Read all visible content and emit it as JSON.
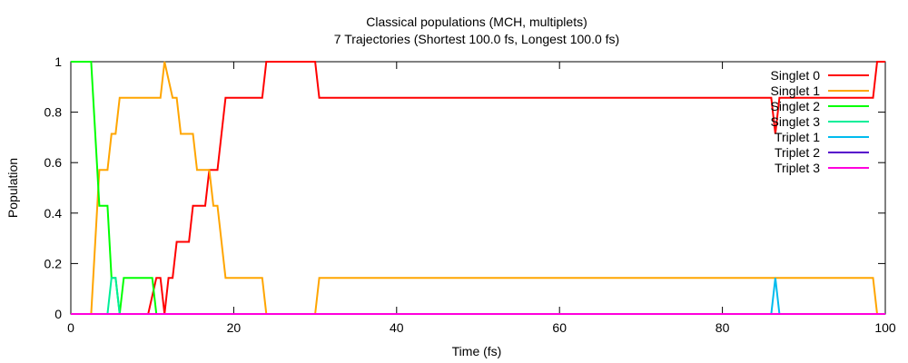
{
  "chart_data": {
    "type": "line",
    "title": "Classical populations (MCH, multiplets)",
    "subtitle": "7 Trajectories (Shortest 100.0 fs, Longest 100.0 fs)",
    "xlabel": "Time (fs)",
    "ylabel": "Population",
    "xlim": [
      0,
      100
    ],
    "ylim": [
      0,
      1
    ],
    "x_ticks": [
      "0",
      "20",
      "40",
      "60",
      "80",
      "100"
    ],
    "y_ticks": [
      "0",
      "0.2",
      "0.4",
      "0.6",
      "0.8",
      "1"
    ],
    "legend_position": "top-right",
    "series": [
      {
        "name": "Singlet 0",
        "color": "#ff0000",
        "points": [
          [
            0,
            0
          ],
          [
            9.5,
            0
          ],
          [
            10.5,
            0.143
          ],
          [
            11,
            0.143
          ],
          [
            11.5,
            0
          ],
          [
            12,
            0.143
          ],
          [
            12.5,
            0.143
          ],
          [
            13,
            0.286
          ],
          [
            14.5,
            0.286
          ],
          [
            15,
            0.429
          ],
          [
            16.5,
            0.429
          ],
          [
            17,
            0.571
          ],
          [
            18,
            0.571
          ],
          [
            19,
            0.857
          ],
          [
            23.5,
            0.857
          ],
          [
            24,
            1
          ],
          [
            30,
            1
          ],
          [
            30.5,
            0.857
          ],
          [
            86,
            0.857
          ],
          [
            86.5,
            0.714
          ],
          [
            87,
            0.857
          ],
          [
            98.5,
            0.857
          ],
          [
            99,
            1
          ],
          [
            100,
            1
          ]
        ]
      },
      {
        "name": "Singlet 1",
        "color": "#ffa500",
        "points": [
          [
            0,
            0
          ],
          [
            2.5,
            0
          ],
          [
            3.5,
            0.571
          ],
          [
            4.5,
            0.571
          ],
          [
            5,
            0.714
          ],
          [
            5.5,
            0.714
          ],
          [
            6,
            0.857
          ],
          [
            11,
            0.857
          ],
          [
            11.5,
            1
          ],
          [
            12.5,
            0.857
          ],
          [
            13,
            0.857
          ],
          [
            13.5,
            0.714
          ],
          [
            15,
            0.714
          ],
          [
            15.5,
            0.571
          ],
          [
            17,
            0.571
          ],
          [
            17.5,
            0.429
          ],
          [
            18,
            0.429
          ],
          [
            19,
            0.143
          ],
          [
            23.5,
            0.143
          ],
          [
            24,
            0
          ],
          [
            30,
            0
          ],
          [
            30.5,
            0.143
          ],
          [
            98.5,
            0.143
          ],
          [
            99,
            0
          ],
          [
            100,
            0
          ]
        ]
      },
      {
        "name": "Singlet 2",
        "color": "#00ff00",
        "points": [
          [
            0,
            1
          ],
          [
            2.5,
            1
          ],
          [
            3.5,
            0.429
          ],
          [
            4.5,
            0.429
          ],
          [
            5,
            0.143
          ],
          [
            5.5,
            0.143
          ],
          [
            6,
            0
          ],
          [
            6.5,
            0.143
          ],
          [
            10,
            0.143
          ],
          [
            10.5,
            0
          ],
          [
            100,
            0
          ]
        ]
      },
      {
        "name": "Singlet 3",
        "color": "#00ee99",
        "points": [
          [
            0,
            0
          ],
          [
            4.5,
            0
          ],
          [
            5,
            0.143
          ],
          [
            5.5,
            0.143
          ],
          [
            6,
            0
          ],
          [
            100,
            0
          ]
        ]
      },
      {
        "name": "Triplet 1",
        "color": "#00bbee",
        "points": [
          [
            0,
            0
          ],
          [
            86,
            0
          ],
          [
            86.5,
            0.143
          ],
          [
            87,
            0
          ],
          [
            100,
            0
          ]
        ]
      },
      {
        "name": "Triplet 2",
        "color": "#5500cc",
        "points": [
          [
            0,
            0
          ],
          [
            100,
            0
          ]
        ]
      },
      {
        "name": "Triplet 3",
        "color": "#ff00dd",
        "points": [
          [
            0,
            0
          ],
          [
            100,
            0
          ]
        ]
      }
    ]
  }
}
